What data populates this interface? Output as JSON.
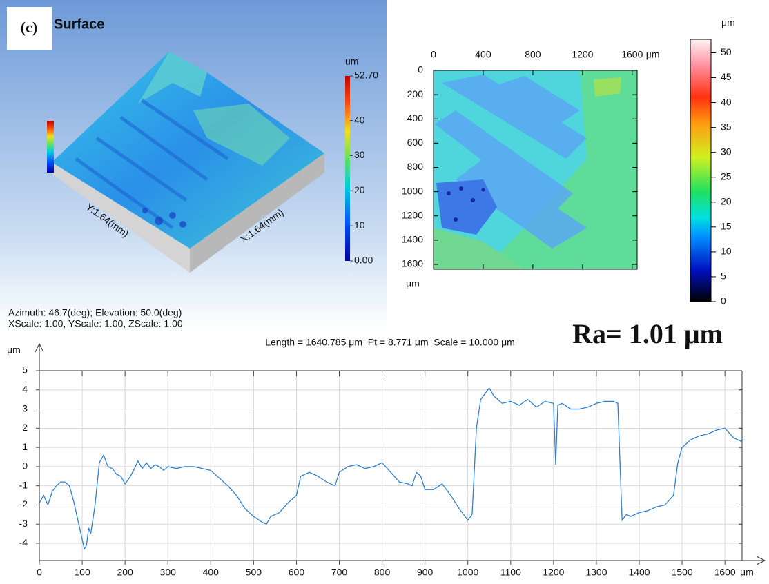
{
  "chart_data": [
    {
      "type": "surface",
      "label": "(c)",
      "title": "Surface",
      "colorbar_title": "um",
      "clim": [
        0,
        52.7
      ],
      "colorbar_ticks": [
        {
          "value": 0,
          "label": "0.00"
        },
        10,
        20,
        30,
        40,
        {
          "value": 52.7,
          "label": "52.70"
        }
      ],
      "x_axis_label": "X:1.64(mm)",
      "y_axis_label": "Y:1.64(mm)",
      "notes": [
        "Azimuth: 46.7(deg); Elevation: 50.0(deg)",
        "XScale: 1.00, YScale: 1.00, ZScale: 1.00"
      ]
    },
    {
      "type": "heatmap",
      "x_unit": "μm",
      "y_unit": "μm",
      "xlim": [
        0,
        1640
      ],
      "ylim": [
        0,
        1640
      ],
      "xticks": [
        0,
        400,
        800,
        1200,
        1600
      ],
      "yticks": [
        0,
        200,
        400,
        600,
        800,
        1000,
        1200,
        1400,
        1600
      ],
      "colorbar_title": "μm",
      "clim": [
        0,
        52.7
      ],
      "colorbar_ticks": [
        0,
        5,
        10,
        15,
        20,
        25,
        30,
        35,
        40,
        45,
        50
      ]
    },
    {
      "type": "line",
      "annotation": "Ra= 1.01 μm",
      "subtitle": "Length = 1640.785 μm  Pt = 8.771 μm  Scale = 10.000 μm",
      "y_axis_label": "μm",
      "x_unit": "μm",
      "x": [
        0,
        10,
        20,
        30,
        40,
        50,
        60,
        70,
        80,
        90,
        100,
        105,
        110,
        115,
        120,
        130,
        140,
        150,
        160,
        170,
        180,
        190,
        200,
        210,
        220,
        230,
        240,
        250,
        260,
        270,
        280,
        290,
        300,
        320,
        340,
        360,
        380,
        400,
        420,
        440,
        460,
        480,
        500,
        520,
        530,
        540,
        560,
        580,
        600,
        610,
        620,
        630,
        650,
        670,
        690,
        700,
        720,
        740,
        760,
        780,
        800,
        820,
        840,
        860,
        870,
        880,
        890,
        900,
        920,
        940,
        960,
        980,
        1000,
        1010,
        1020,
        1030,
        1040,
        1050,
        1060,
        1080,
        1100,
        1120,
        1140,
        1160,
        1180,
        1200,
        1205,
        1210,
        1220,
        1240,
        1260,
        1280,
        1300,
        1320,
        1340,
        1350,
        1360,
        1370,
        1380,
        1400,
        1420,
        1440,
        1460,
        1480,
        1490,
        1500,
        1520,
        1540,
        1560,
        1580,
        1600,
        1620,
        1640
      ],
      "series": [
        {
          "color": "#2f7fd0",
          "values": [
            -1.9,
            -1.5,
            -2.0,
            -1.3,
            -1.0,
            -0.8,
            -0.8,
            -1.0,
            -1.8,
            -2.8,
            -3.8,
            -4.3,
            -4.1,
            -3.2,
            -3.5,
            -2.0,
            0.2,
            0.6,
            0.0,
            -0.1,
            -0.4,
            -0.5,
            -0.9,
            -0.6,
            -0.2,
            0.3,
            -0.1,
            0.2,
            -0.1,
            0.1,
            0.0,
            -0.2,
            0.0,
            -0.1,
            0.0,
            0.0,
            -0.1,
            -0.2,
            -0.6,
            -1.0,
            -1.5,
            -2.2,
            -2.6,
            -2.9,
            -3.0,
            -2.6,
            -2.4,
            -1.9,
            -1.5,
            -0.5,
            -0.4,
            -0.3,
            -0.5,
            -0.8,
            -1.0,
            -0.3,
            0.0,
            0.1,
            -0.1,
            0.0,
            0.2,
            -0.3,
            -0.8,
            -0.9,
            -1.0,
            -0.3,
            -0.5,
            -1.2,
            -1.2,
            -0.9,
            -1.5,
            -2.2,
            -2.8,
            -2.5,
            2.0,
            3.5,
            3.8,
            4.1,
            3.7,
            3.3,
            3.4,
            3.2,
            3.5,
            3.1,
            3.4,
            3.3,
            0.1,
            3.2,
            3.3,
            3.0,
            3.0,
            3.1,
            3.3,
            3.4,
            3.4,
            3.3,
            -2.8,
            -2.5,
            -2.6,
            -2.4,
            -2.3,
            -2.1,
            -2.0,
            -1.5,
            0.2,
            1.0,
            1.4,
            1.6,
            1.7,
            1.9,
            2.0,
            1.5,
            1.3
          ]
        }
      ],
      "xlim": [
        0,
        1640
      ],
      "ylim": [
        -4.9,
        5
      ],
      "xticks": [
        0,
        100,
        200,
        300,
        400,
        500,
        600,
        700,
        800,
        900,
        1000,
        1100,
        1200,
        1300,
        1400,
        1500,
        1600
      ],
      "yticks": [
        -4,
        -3,
        -2,
        -1,
        0,
        1,
        2,
        3,
        4,
        5
      ],
      "grid": true
    }
  ]
}
